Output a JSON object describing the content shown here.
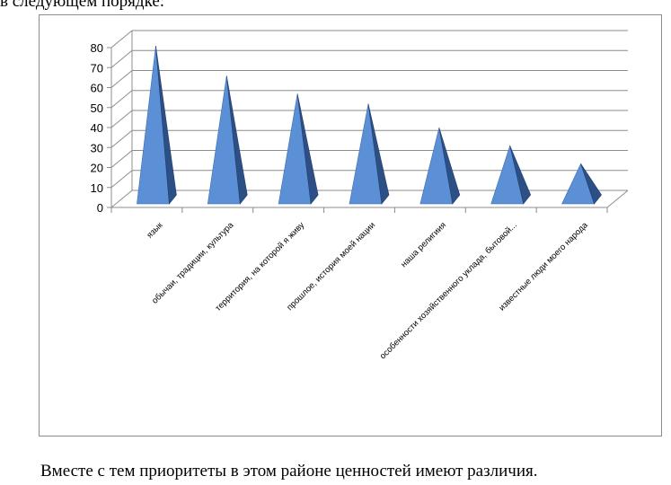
{
  "page": {
    "top_text": "в следующем порядке:",
    "bottom_text": "Вместе с тем приоритеты в этом районе ценностей имеют различия."
  },
  "colors": {
    "pyramid_light": "#5b8fd6",
    "pyramid_dark": "#2c4f86",
    "gridline": "#8c8c8c",
    "frame": "#8c8c8c"
  },
  "chart_data": {
    "type": "bar",
    "bar_shape": "3d-pyramid",
    "categories": [
      "язык",
      "обычаи, традиции, культура",
      "территория, на которой я живу",
      "прошлое, история моей нации",
      "наша религиия",
      "особенности хозяйственного уклада, бытовой...",
      "известные люди моего народа"
    ],
    "values": [
      80,
      65,
      56,
      51,
      39,
      30,
      21
    ],
    "ylim": [
      0,
      80
    ],
    "yticks": [
      0,
      10,
      20,
      30,
      40,
      50,
      60,
      70,
      80
    ],
    "grid": true,
    "legend": "none",
    "title": "",
    "xlabel": "",
    "ylabel": ""
  }
}
